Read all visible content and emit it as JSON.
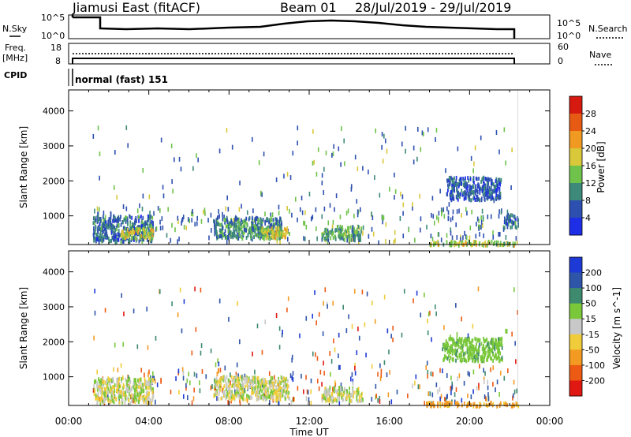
{
  "header": {
    "station": "Jiamusi East (fitACF)",
    "beam": "Beam 01",
    "dates": "28/Jul/2019 - 29/Jul/2019"
  },
  "noise_panel": {
    "left_label": "N.Sky",
    "right_label": "N.Search",
    "left_ticks": [
      "10^5",
      "10^0"
    ],
    "right_ticks": [
      "10^5",
      "10^0"
    ]
  },
  "freq_panel": {
    "left_label_line1": "Freq.",
    "left_label_line2": "[MHz]",
    "left_ticks": [
      "18",
      "8"
    ],
    "right_label": "Nave",
    "right_ticks": [
      "60",
      "0"
    ]
  },
  "cpid_panel": {
    "label": "CPID",
    "mode": "normal (fast) 151"
  },
  "x_axis": {
    "label": "Time UT",
    "ticks": [
      "00:00",
      "04:00",
      "08:00",
      "12:00",
      "16:00",
      "20:00",
      "00:00"
    ]
  },
  "power_panel": {
    "ylabel": "Slant Range [km]",
    "yticks": [
      "1000",
      "2000",
      "3000",
      "4000"
    ],
    "cbar_label": "Power [dB]",
    "cbar_ticks": [
      "4",
      "8",
      "12",
      "16",
      "20",
      "24",
      "28"
    ],
    "cbar_colors": [
      "#1e2ee6",
      "#2d4fb0",
      "#3d8a7a",
      "#6fc24a",
      "#d8c83a",
      "#f09a22",
      "#e65a14",
      "#d61a10"
    ]
  },
  "velocity_panel": {
    "ylabel": "Slant Range [km]",
    "yticks": [
      "1000",
      "2000",
      "3000",
      "4000"
    ],
    "cbar_label": "Velocity [m s^-1]",
    "cbar_ticks": [
      "200",
      "100",
      "50",
      "15",
      "-15",
      "-50",
      "-100",
      "-200"
    ],
    "cbar_colors": [
      "#1e3ad6",
      "#2f55a8",
      "#3e8a6e",
      "#7ac83a",
      "#c8c8c8",
      "#f0cc3a",
      "#f39a22",
      "#ec5a14",
      "#e01812"
    ]
  },
  "chart_data": [
    {
      "type": "heatmap",
      "title": "Power",
      "xlabel": "Time UT",
      "ylabel": "Slant Range [km]",
      "xlim_hours": [
        0,
        24
      ],
      "ylim_km": [
        180,
        4600
      ],
      "data_end_hour": 22.4,
      "colorbar": {
        "label": "Power [dB]",
        "range": [
          0,
          30
        ]
      },
      "regions": [
        {
          "t": [
            1.2,
            4.2
          ],
          "r": [
            300,
            1050
          ],
          "value_db": 8
        },
        {
          "t": [
            2.6,
            4.2
          ],
          "r": [
            400,
            700
          ],
          "value_db": 18
        },
        {
          "t": [
            7.2,
            10.6
          ],
          "r": [
            400,
            1000
          ],
          "value_db": 10
        },
        {
          "t": [
            9.6,
            11.0
          ],
          "r": [
            400,
            700
          ],
          "value_db": 18
        },
        {
          "t": [
            12.6,
            14.6
          ],
          "r": [
            350,
            750
          ],
          "value_db": 12
        },
        {
          "t": [
            17.8,
            22.4
          ],
          "r": [
            200,
            320
          ],
          "value_db": 16
        },
        {
          "t": [
            18.8,
            21.6
          ],
          "r": [
            1500,
            2150
          ],
          "value_db": 6
        },
        {
          "t": [
            21.7,
            22.4
          ],
          "r": [
            700,
            1100
          ],
          "value_db": 8
        }
      ]
    },
    {
      "type": "heatmap",
      "title": "Velocity",
      "xlabel": "Time UT",
      "ylabel": "Slant Range [km]",
      "xlim_hours": [
        0,
        24
      ],
      "ylim_km": [
        180,
        4600
      ],
      "data_end_hour": 22.4,
      "colorbar": {
        "label": "Velocity [m s^-1]",
        "range": [
          -250,
          250
        ]
      },
      "regions": [
        {
          "t": [
            1.2,
            4.2
          ],
          "r": [
            300,
            1000
          ],
          "value_ms": 0
        },
        {
          "t": [
            7.2,
            11.0
          ],
          "r": [
            400,
            1050
          ],
          "value_ms": 0
        },
        {
          "t": [
            12.6,
            14.6
          ],
          "r": [
            350,
            750
          ],
          "value_ms": 0
        },
        {
          "t": [
            17.8,
            22.4
          ],
          "r": [
            200,
            320
          ],
          "value_ms": -40
        },
        {
          "t": [
            18.6,
            21.6
          ],
          "r": [
            1500,
            2150
          ],
          "value_ms": 20
        }
      ]
    }
  ]
}
